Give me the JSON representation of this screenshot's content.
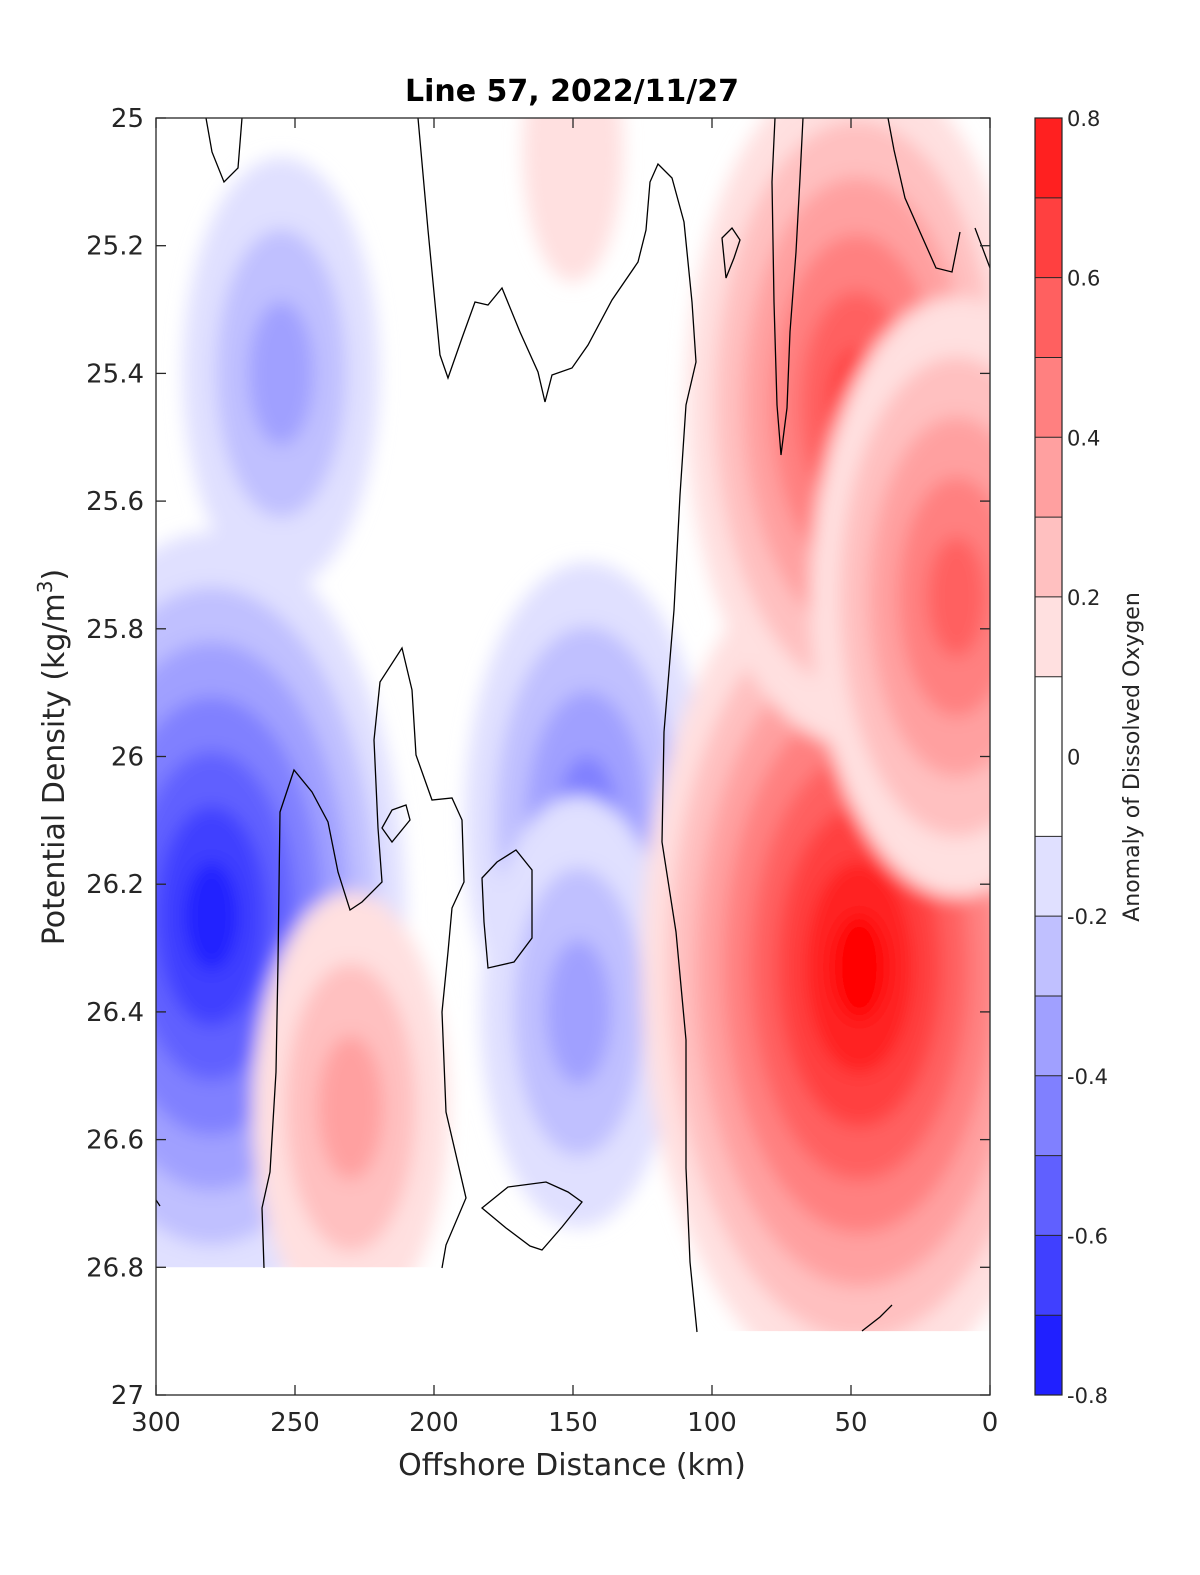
{
  "chart_data": {
    "type": "heatmap",
    "title": "Line 57, 2022/11/27",
    "xlabel": "Offshore Distance (km)",
    "ylabel": "Potential Density (kg/m³)",
    "ylabel_main": "Potential Density (kg/m",
    "ylabel_sup": "3",
    "ylabel_end": ")",
    "xlim": [
      300,
      0
    ],
    "ylim": [
      25,
      27
    ],
    "x_reversed": true,
    "y_reversed": true,
    "xticks": [
      "300",
      "250",
      "200",
      "150",
      "100",
      "50",
      "0"
    ],
    "yticks": [
      "25",
      "25.2",
      "25.4",
      "25.6",
      "25.8",
      "26",
      "26.2",
      "26.4",
      "26.6",
      "26.8",
      "27"
    ],
    "colorbar": {
      "label": "Anomaly of Dissolved Oxygen",
      "ticks": [
        "0.8",
        "0.6",
        "0.4",
        "0.2",
        "0",
        "-0.2",
        "-0.4",
        "-0.6",
        "-0.8"
      ],
      "range": [
        -0.8,
        0.8
      ],
      "levels": [
        -0.8,
        -0.7,
        -0.6,
        -0.5,
        -0.4,
        -0.3,
        -0.2,
        -0.1,
        0.1,
        0.2,
        0.3,
        0.4,
        0.5,
        0.6,
        0.7,
        0.8
      ],
      "colors": [
        "#0000ff",
        "#2020ff",
        "#4040ff",
        "#6060ff",
        "#8080ff",
        "#a0a0ff",
        "#c0c0ff",
        "#e0e0ff",
        "#ffffff",
        "#ffe0e0",
        "#ffc0c0",
        "#ffa0a0",
        "#ff8080",
        "#ff6060",
        "#ff4040",
        "#ff2020",
        "#ff0000"
      ]
    },
    "grid": false,
    "data_extent": {
      "offshore_range_km": [
        300,
        10
      ],
      "density_limit_offshore": 26.8,
      "density_limit_nearshore": 26.9
    },
    "features": [
      {
        "name": "offshore oxygen minimum",
        "x": 280,
        "y": 26.25,
        "value": -0.7
      },
      {
        "name": "offshore low",
        "x": 255,
        "y": 25.4,
        "value": -0.3
      },
      {
        "name": "mid-section low",
        "x": 145,
        "y": 26.1,
        "value": -0.4
      },
      {
        "name": "mid-section low (deep)",
        "x": 148,
        "y": 26.4,
        "value": -0.3
      },
      {
        "name": "deep positive patch",
        "x": 230,
        "y": 26.55,
        "value": 0.3
      },
      {
        "name": "shallow positive patch",
        "x": 150,
        "y": 25.05,
        "value": 0.15
      },
      {
        "name": "nearshore oxygen maximum",
        "x": 47,
        "y": 26.33,
        "value": 0.75
      },
      {
        "name": "nearshore high (upper)",
        "x": 48,
        "y": 25.45,
        "value": 0.55
      },
      {
        "name": "coastal high",
        "x": 12,
        "y": 25.75,
        "value": 0.5
      }
    ]
  }
}
